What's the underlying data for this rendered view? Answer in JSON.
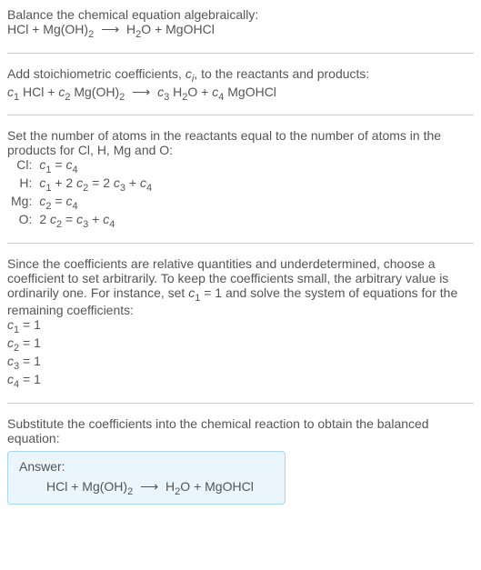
{
  "intro": {
    "line1": "Balance the chemical equation algebraically:"
  },
  "step2": {
    "text": "Add stoichiometric coefficients, ",
    "text2": ", to the reactants and products:"
  },
  "step3": {
    "text": "Set the number of atoms in the reactants equal to the number of atoms in the products for Cl, H, Mg and O:"
  },
  "atoms": {
    "rows": [
      {
        "label": "Cl:",
        "eq_parts": [
          "c",
          "1",
          " = ",
          "c",
          "4"
        ]
      },
      {
        "label": "H:",
        "eq_parts": [
          "c",
          "1",
          " + 2 ",
          "c",
          "2",
          " = 2 ",
          "c",
          "3",
          " + ",
          "c",
          "4"
        ]
      },
      {
        "label": "Mg:",
        "eq_parts": [
          "c",
          "2",
          " = ",
          "c",
          "4"
        ]
      },
      {
        "label": "O:",
        "eq_parts": [
          "2 ",
          "c",
          "2",
          " = ",
          "c",
          "3",
          " + ",
          "c",
          "4"
        ]
      }
    ]
  },
  "step4": {
    "text_a": "Since the coefficients are relative quantities and underdetermined, choose a coefficient to set arbitrarily. To keep the coefficients small, the arbitrary value is ordinarily one. For instance, set ",
    "text_b": " = 1 and solve the system of equations for the remaining coefficients:"
  },
  "coeffs": [
    {
      "c": "c",
      "i": "1",
      "val": " = 1"
    },
    {
      "c": "c",
      "i": "2",
      "val": " = 1"
    },
    {
      "c": "c",
      "i": "3",
      "val": " = 1"
    },
    {
      "c": "c",
      "i": "4",
      "val": " = 1"
    }
  ],
  "step5": {
    "text": "Substitute the coefficients into the chemical reaction to obtain the balanced equation:"
  },
  "answer": {
    "label": "Answer:"
  },
  "chem": {
    "hcl_a": "HCl + Mg(OH)",
    "hcl_b": "2",
    "arrow": " ⟶ ",
    "prod_a": "H",
    "prod_b": "2",
    "prod_c": "O + MgOHCl",
    "c": "c",
    "s1": "1",
    "s2": "2",
    "s3": "3",
    "s4": "4",
    "sp": " ",
    "plus": " + ",
    "hcl_only": "HCl",
    "mgoh_a": "Mg(OH)",
    "mgoh_b": "2",
    "h2o_a": "H",
    "h2o_b": "2",
    "h2o_c": "O",
    "mgohcl": "MgOHCl",
    "ci_a": "c",
    "ci_i": "i"
  }
}
